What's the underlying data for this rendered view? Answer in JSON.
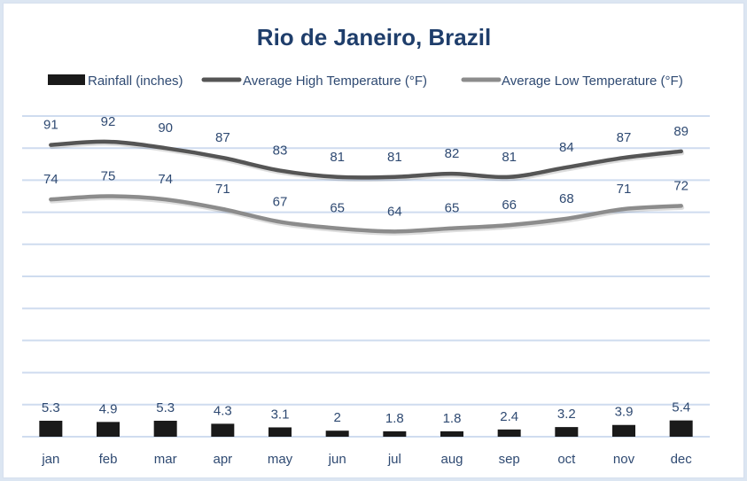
{
  "chart_data": {
    "type": "bar+line",
    "title": "Rio de Janeiro, Brazil",
    "categories": [
      "jan",
      "feb",
      "mar",
      "apr",
      "may",
      "jun",
      "jul",
      "aug",
      "sep",
      "oct",
      "nov",
      "dec"
    ],
    "series": [
      {
        "name": "Rainfall (inches)",
        "type": "bar",
        "axis": "secondary",
        "color": "#1a1a1a",
        "values": [
          5.3,
          4.9,
          5.3,
          4.3,
          3.1,
          2,
          1.8,
          1.8,
          2.4,
          3.2,
          3.9,
          5.4
        ],
        "labels": [
          "5.3",
          "4.9",
          "5.3",
          "4.3",
          "3.1",
          "2",
          "1.8",
          "1.8",
          "2.4",
          "3.2",
          "3.9",
          "5.4"
        ]
      },
      {
        "name": "Average High Temperature (°F)",
        "type": "line",
        "axis": "primary",
        "color": "#555555",
        "values": [
          91,
          92,
          90,
          87,
          83,
          81,
          81,
          82,
          81,
          84,
          87,
          89
        ],
        "labels": [
          "91",
          "92",
          "90",
          "87",
          "83",
          "81",
          "81",
          "82",
          "81",
          "84",
          "87",
          "89"
        ]
      },
      {
        "name": "Average Low Temperature (°F)",
        "type": "line",
        "axis": "primary",
        "color": "#8c8c8c",
        "values": [
          74,
          75,
          74,
          71,
          67,
          65,
          64,
          65,
          66,
          68,
          71,
          72
        ],
        "labels": [
          "74",
          "75",
          "74",
          "71",
          "67",
          "65",
          "64",
          "65",
          "66",
          "68",
          "71",
          "72"
        ]
      }
    ],
    "ylim": [
      0,
      100
    ],
    "y2lim": [
      0,
      30
    ],
    "grid": true,
    "legend": "top",
    "xlabel": "",
    "ylabel": ""
  }
}
